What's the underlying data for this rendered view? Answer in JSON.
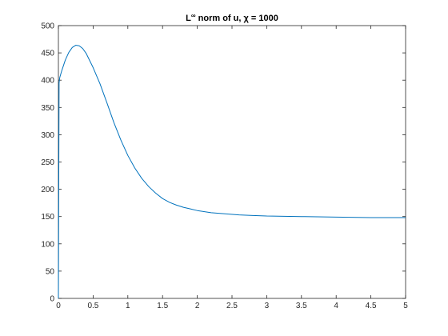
{
  "chart_data": {
    "type": "line",
    "title": "L∞ norm of u, χ = 1000",
    "title_parts": {
      "pre": "L",
      "sup": "∞",
      "post": " norm of u, χ = 1000"
    },
    "xlabel": "",
    "ylabel": "",
    "xlim": [
      0,
      5
    ],
    "ylim": [
      0,
      500
    ],
    "xticks": [
      0,
      0.5,
      1,
      1.5,
      2,
      2.5,
      3,
      3.5,
      4,
      4.5,
      5
    ],
    "xtick_labels": [
      "0",
      "0.5",
      "1",
      "1.5",
      "2",
      "2.5",
      "3",
      "3.5",
      "4",
      "4.5",
      "5"
    ],
    "yticks": [
      0,
      50,
      100,
      150,
      200,
      250,
      300,
      350,
      400,
      450,
      500
    ],
    "ytick_labels": [
      "0",
      "50",
      "100",
      "150",
      "200",
      "250",
      "300",
      "350",
      "400",
      "450",
      "500"
    ],
    "grid": false,
    "line_color": "#0072bd",
    "series": [
      {
        "x": [
          0,
          0.005,
          0.01,
          0.02,
          0.05,
          0.1,
          0.15,
          0.2,
          0.25,
          0.3,
          0.35,
          0.4,
          0.5,
          0.6,
          0.7,
          0.8,
          0.9,
          1.0,
          1.1,
          1.2,
          1.3,
          1.4,
          1.5,
          1.6,
          1.7,
          1.8,
          1.9,
          2.0,
          2.2,
          2.4,
          2.6,
          2.8,
          3.0,
          3.5,
          4.0,
          4.5,
          5.0
        ],
        "y": [
          0,
          200,
          395,
          405,
          418,
          437,
          451,
          460,
          464,
          463,
          458,
          449,
          423,
          393,
          358,
          322,
          290,
          262,
          239,
          220,
          205,
          193,
          183,
          176,
          171,
          167,
          164,
          161,
          157,
          155,
          153,
          152,
          151,
          150,
          149,
          148,
          148
        ]
      }
    ]
  }
}
